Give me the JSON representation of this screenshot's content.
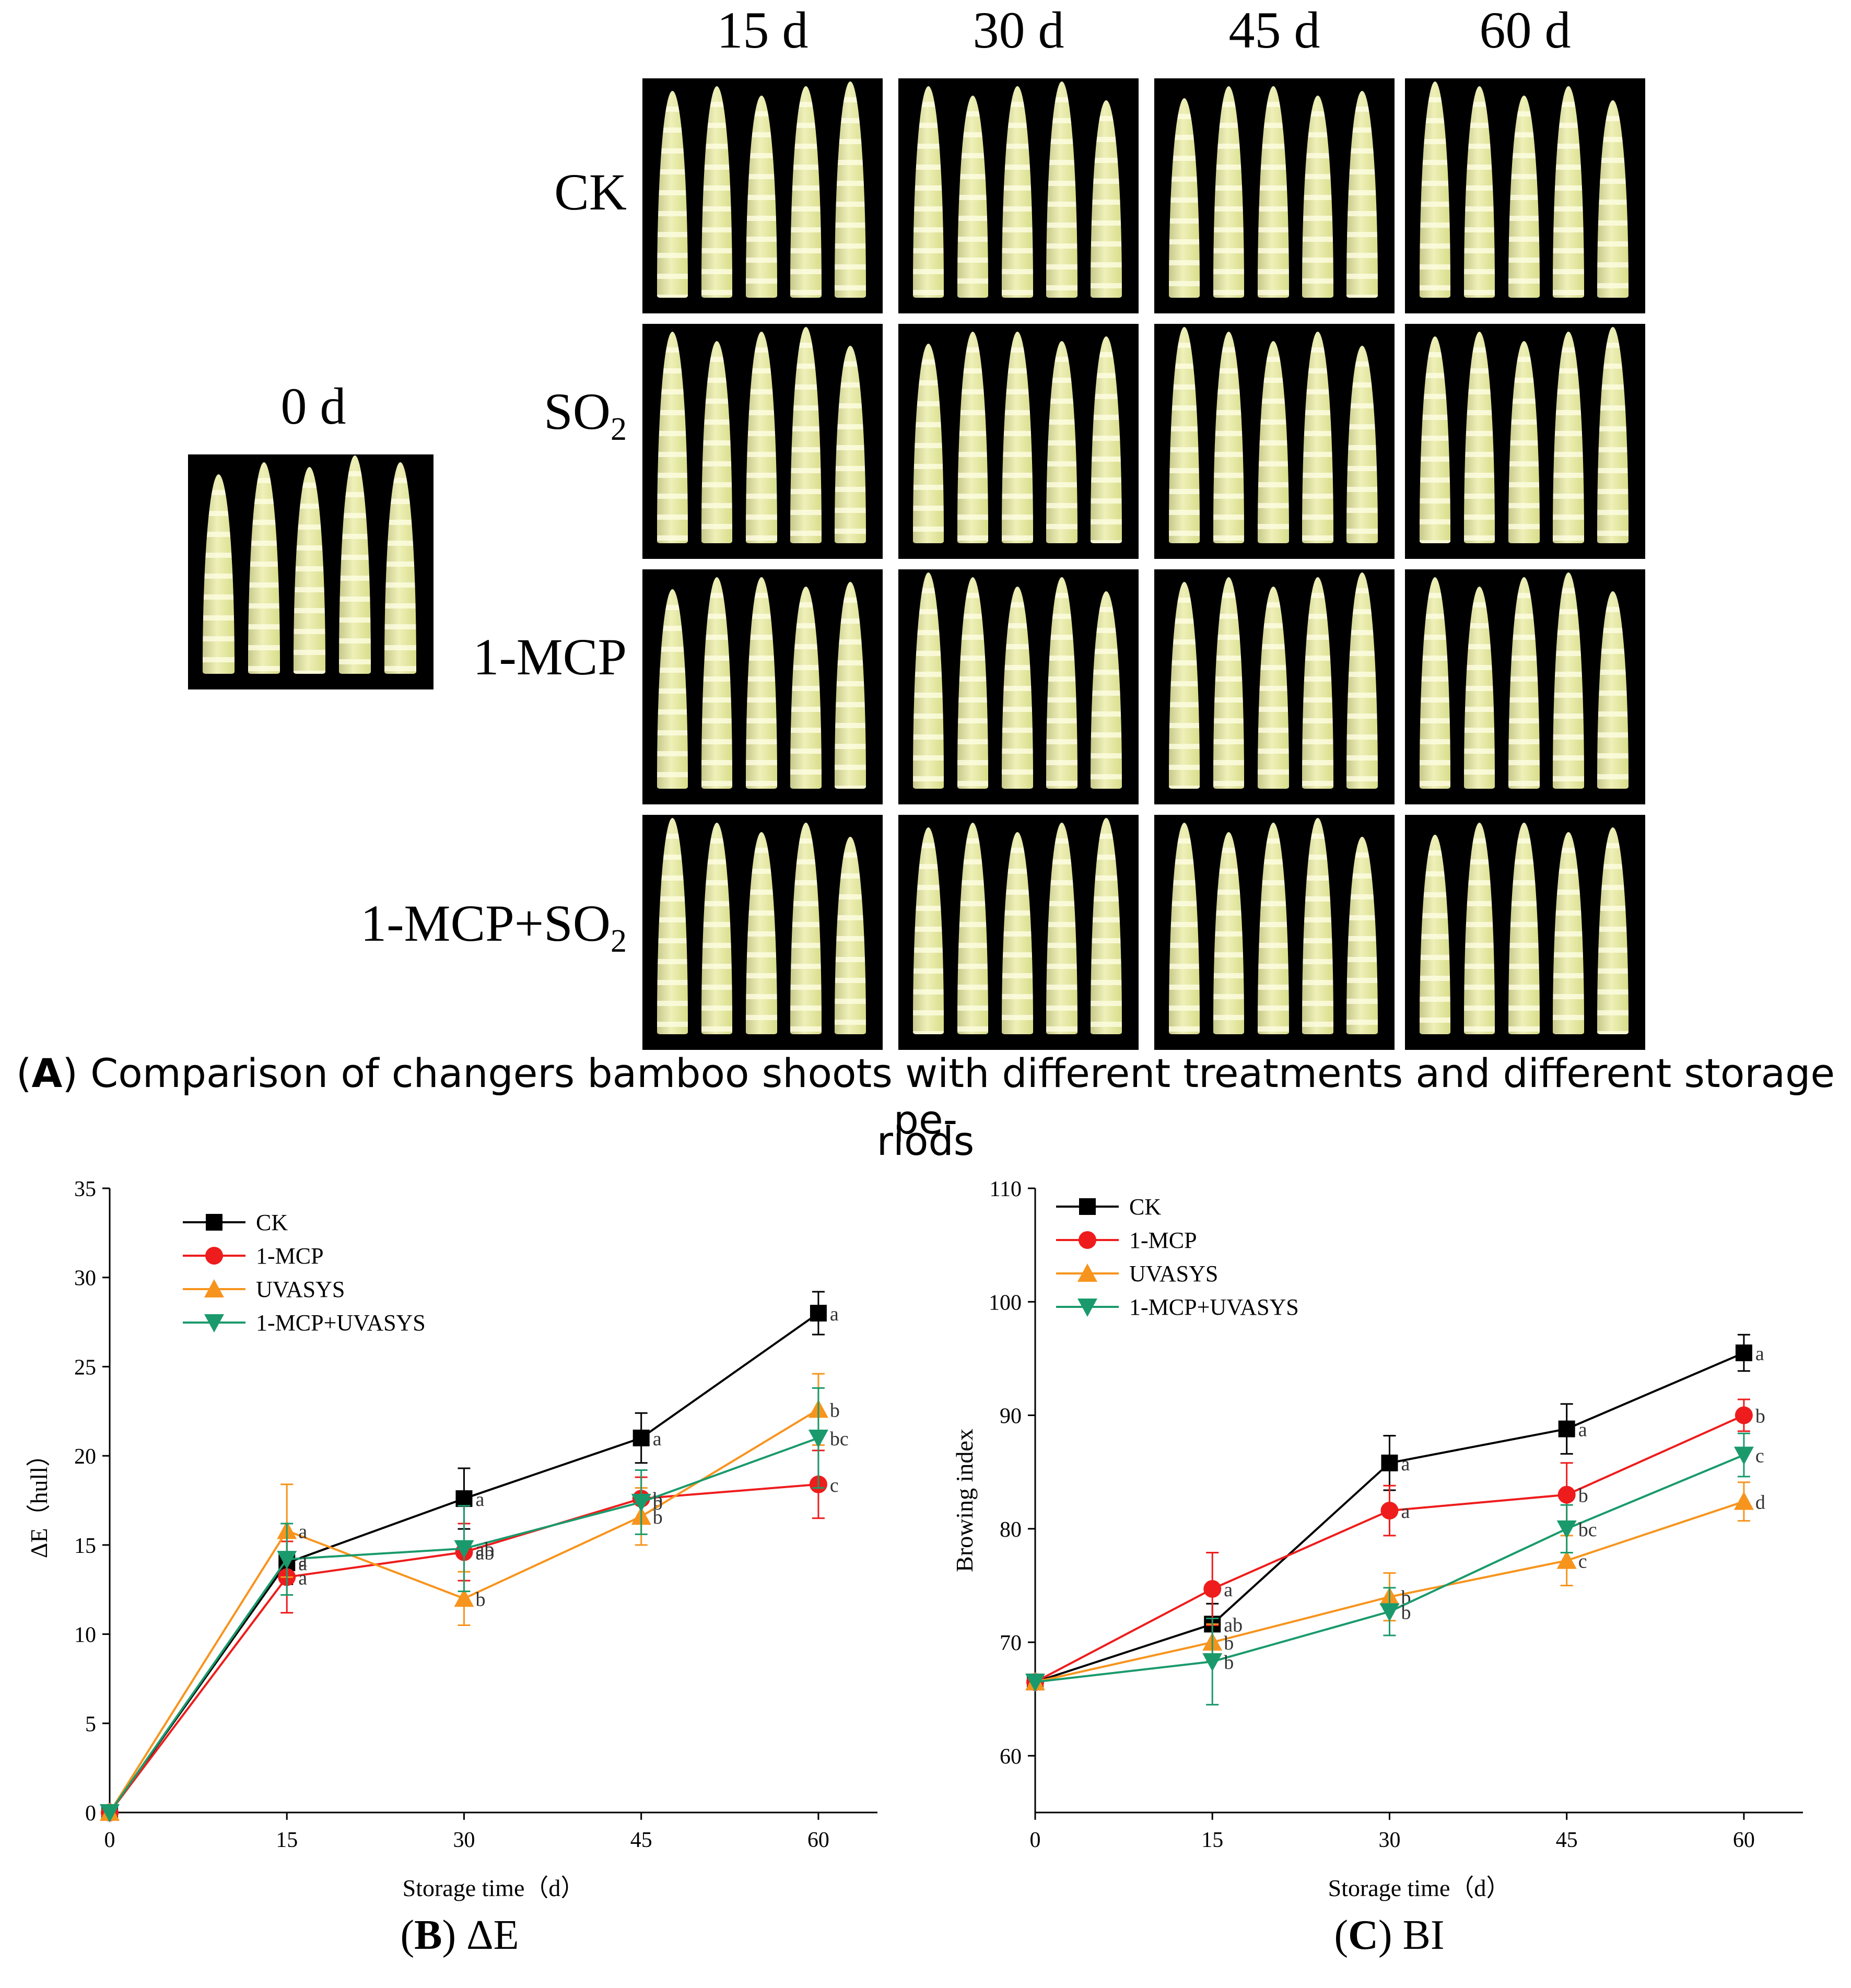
{
  "panel_a": {
    "day0_label": "0 d",
    "days": [
      "15 d",
      "30 d",
      "45 d",
      "60 d"
    ],
    "treatments": [
      {
        "label": "CK",
        "sub": ""
      },
      {
        "label": "SO",
        "sub": "2"
      },
      {
        "label": "1-MCP",
        "sub": ""
      },
      {
        "label": "1-MCP+SO",
        "sub": "2"
      }
    ],
    "caption_letter": "A",
    "caption_line1": ") Comparison of changers bamboo shoots with different treatments and different storage pe-",
    "caption_line2": "riods"
  },
  "captions": {
    "b_letter": "B",
    "b_text": ") ΔE",
    "c_letter": "C",
    "c_text": ") BI"
  },
  "colors": {
    "CK": "#000000",
    "1-MCP": "#ee1c1c",
    "UVASYS": "#f7941d",
    "1-MCP+UVASYS": "#1a9a6c"
  },
  "chart_data": [
    {
      "type": "line",
      "title": "ΔE",
      "xlabel": "Storage time（d）",
      "ylabel": "ΔE（hull）",
      "x": [
        0,
        15,
        30,
        45,
        60
      ],
      "xlim": [
        0,
        65
      ],
      "ylim": [
        0,
        35
      ],
      "yticks": [
        0,
        5,
        10,
        15,
        20,
        25,
        30,
        35
      ],
      "xticks": [
        0,
        15,
        30,
        45,
        60
      ],
      "legend": [
        "CK",
        "1-MCP",
        "UVASYS",
        "1-MCP+UVASYS"
      ],
      "series": [
        {
          "name": "CK",
          "marker": "square",
          "values": [
            0,
            14,
            17.6,
            21,
            28
          ],
          "errors": [
            0,
            1.2,
            1.7,
            1.4,
            1.2
          ],
          "letters": [
            "",
            "a",
            "a",
            "a",
            "a"
          ]
        },
        {
          "name": "1-MCP",
          "marker": "circle",
          "values": [
            0,
            13.2,
            14.6,
            17.6,
            18.4
          ],
          "errors": [
            0,
            2,
            1.6,
            1.2,
            1.9
          ],
          "letters": [
            "",
            "a",
            "ab",
            "b",
            "c"
          ]
        },
        {
          "name": "UVASYS",
          "marker": "triangle-up",
          "values": [
            0,
            15.8,
            12,
            16.6,
            22.6
          ],
          "errors": [
            0,
            2.6,
            1.5,
            1.6,
            2
          ],
          "letters": [
            "",
            "a",
            "b",
            "b",
            "b"
          ]
        },
        {
          "name": "1-MCP+UVASYS",
          "marker": "triangle-down",
          "values": [
            0,
            14.2,
            14.8,
            17.4,
            21
          ],
          "errors": [
            0,
            2,
            2.4,
            1.8,
            2.8
          ],
          "letters": [
            "",
            "a",
            "ab",
            "b",
            "bc"
          ]
        }
      ]
    },
    {
      "type": "line",
      "title": "BI",
      "xlabel": "Storage time（d）",
      "ylabel": "Browing index",
      "x": [
        0,
        15,
        30,
        45,
        60
      ],
      "xlim": [
        0,
        65
      ],
      "ylim": [
        55,
        110
      ],
      "yticks": [
        60,
        70,
        80,
        90,
        100,
        110
      ],
      "xticks": [
        0,
        15,
        30,
        45,
        60
      ],
      "legend": [
        "CK",
        "1-MCP",
        "UVASYS",
        "1-MCP+UVASYS"
      ],
      "series": [
        {
          "name": "CK",
          "marker": "square",
          "values": [
            66.5,
            71.6,
            85.8,
            88.8,
            95.5
          ],
          "errors": [
            0,
            1.8,
            2.4,
            2.2,
            1.6
          ],
          "letters": [
            "",
            "ab",
            "a",
            "a",
            "a"
          ]
        },
        {
          "name": "1-MCP",
          "marker": "circle",
          "values": [
            66.5,
            74.7,
            81.6,
            83,
            90
          ],
          "errors": [
            0,
            3.2,
            2.2,
            2.8,
            1.4
          ],
          "letters": [
            "",
            "a",
            "a",
            "b",
            "b"
          ]
        },
        {
          "name": "UVASYS",
          "marker": "triangle-up",
          "values": [
            66.5,
            70,
            74,
            77.2,
            82.4
          ],
          "errors": [
            0,
            1.6,
            2.1,
            2.2,
            1.7
          ],
          "letters": [
            "",
            "b",
            "b",
            "c",
            "d"
          ]
        },
        {
          "name": "1-MCP+UVASYS",
          "marker": "triangle-down",
          "values": [
            66.5,
            68.3,
            72.7,
            80,
            86.5
          ],
          "errors": [
            0,
            3.8,
            2.1,
            2.1,
            1.9
          ],
          "letters": [
            "",
            "b",
            "b",
            "bc",
            "c"
          ]
        }
      ]
    }
  ]
}
